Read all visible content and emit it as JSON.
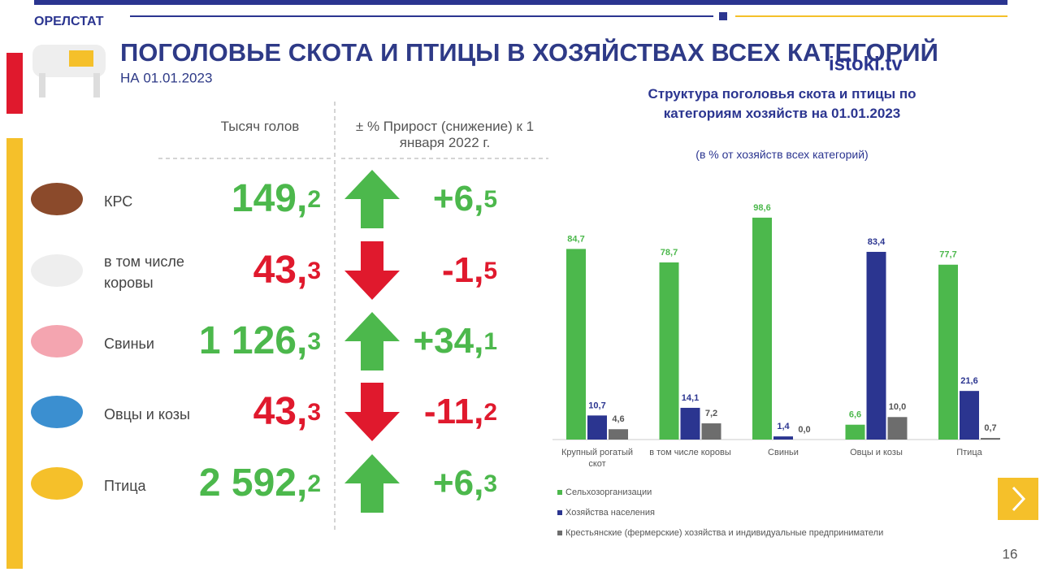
{
  "header": {
    "org": "ОРЕЛСТАТ",
    "title": "ПОГОЛОВЬЕ СКОТА И ПТИЦЫ В ХОЗЯЙСТВАХ ВСЕХ КАТЕГОРИЙ",
    "subtitle": "НА 01.01.2023",
    "watermark": "istoki.tv"
  },
  "table": {
    "columns": [
      "Тысяч голов",
      "± % Прирост (снижение) к 1 января 2022 г."
    ],
    "rows": [
      {
        "label": "КРС",
        "value": "149,2",
        "change": "+6,5",
        "trend": "up"
      },
      {
        "label": "в том числе коровы",
        "value": "43,3",
        "change": "-1,5",
        "trend": "down"
      },
      {
        "label": "Свиньи",
        "value": "1 126,3",
        "change": "+34,1",
        "trend": "up"
      },
      {
        "label": "Овцы и козы",
        "value": "43,3",
        "change": "-11,2",
        "trend": "down"
      },
      {
        "label": "Птица",
        "value": "2 592,2",
        "change": "+6,3",
        "trend": "up"
      }
    ]
  },
  "chart_data": {
    "type": "bar",
    "title": "Структура поголовья скота и птицы по категориям хозяйств на 01.01.2023",
    "subtitle": "(в % от хозяйств всех категорий)",
    "categories": [
      "Крупный рогатый скот",
      "в том числе коровы",
      "Свиньи",
      "Овцы и козы",
      "Птица"
    ],
    "series": [
      {
        "name": "Сельхозорганизации",
        "color": "#4cb84c",
        "values": [
          84.7,
          78.7,
          98.6,
          6.6,
          77.7
        ],
        "value_labels": [
          "84,7",
          "78,7",
          "98,6",
          "6,6",
          "77,7"
        ]
      },
      {
        "name": "Хозяйства населения",
        "color": "#2b3590",
        "values": [
          10.7,
          14.1,
          1.4,
          83.4,
          21.6
        ],
        "value_labels": [
          "10,7",
          "14,1",
          "1,4",
          "83,4",
          "21,6"
        ]
      },
      {
        "name": "Крестьянские (фермерские) хозяйства и индивидуальные предприниматели",
        "color": "#6d6d6d",
        "values": [
          4.6,
          7.2,
          0.0,
          10.0,
          0.7
        ],
        "value_labels": [
          "4,6",
          "7,2",
          "0,0",
          "10,0",
          "0,7"
        ]
      }
    ],
    "legend": "bottom"
  },
  "page_number": "16"
}
